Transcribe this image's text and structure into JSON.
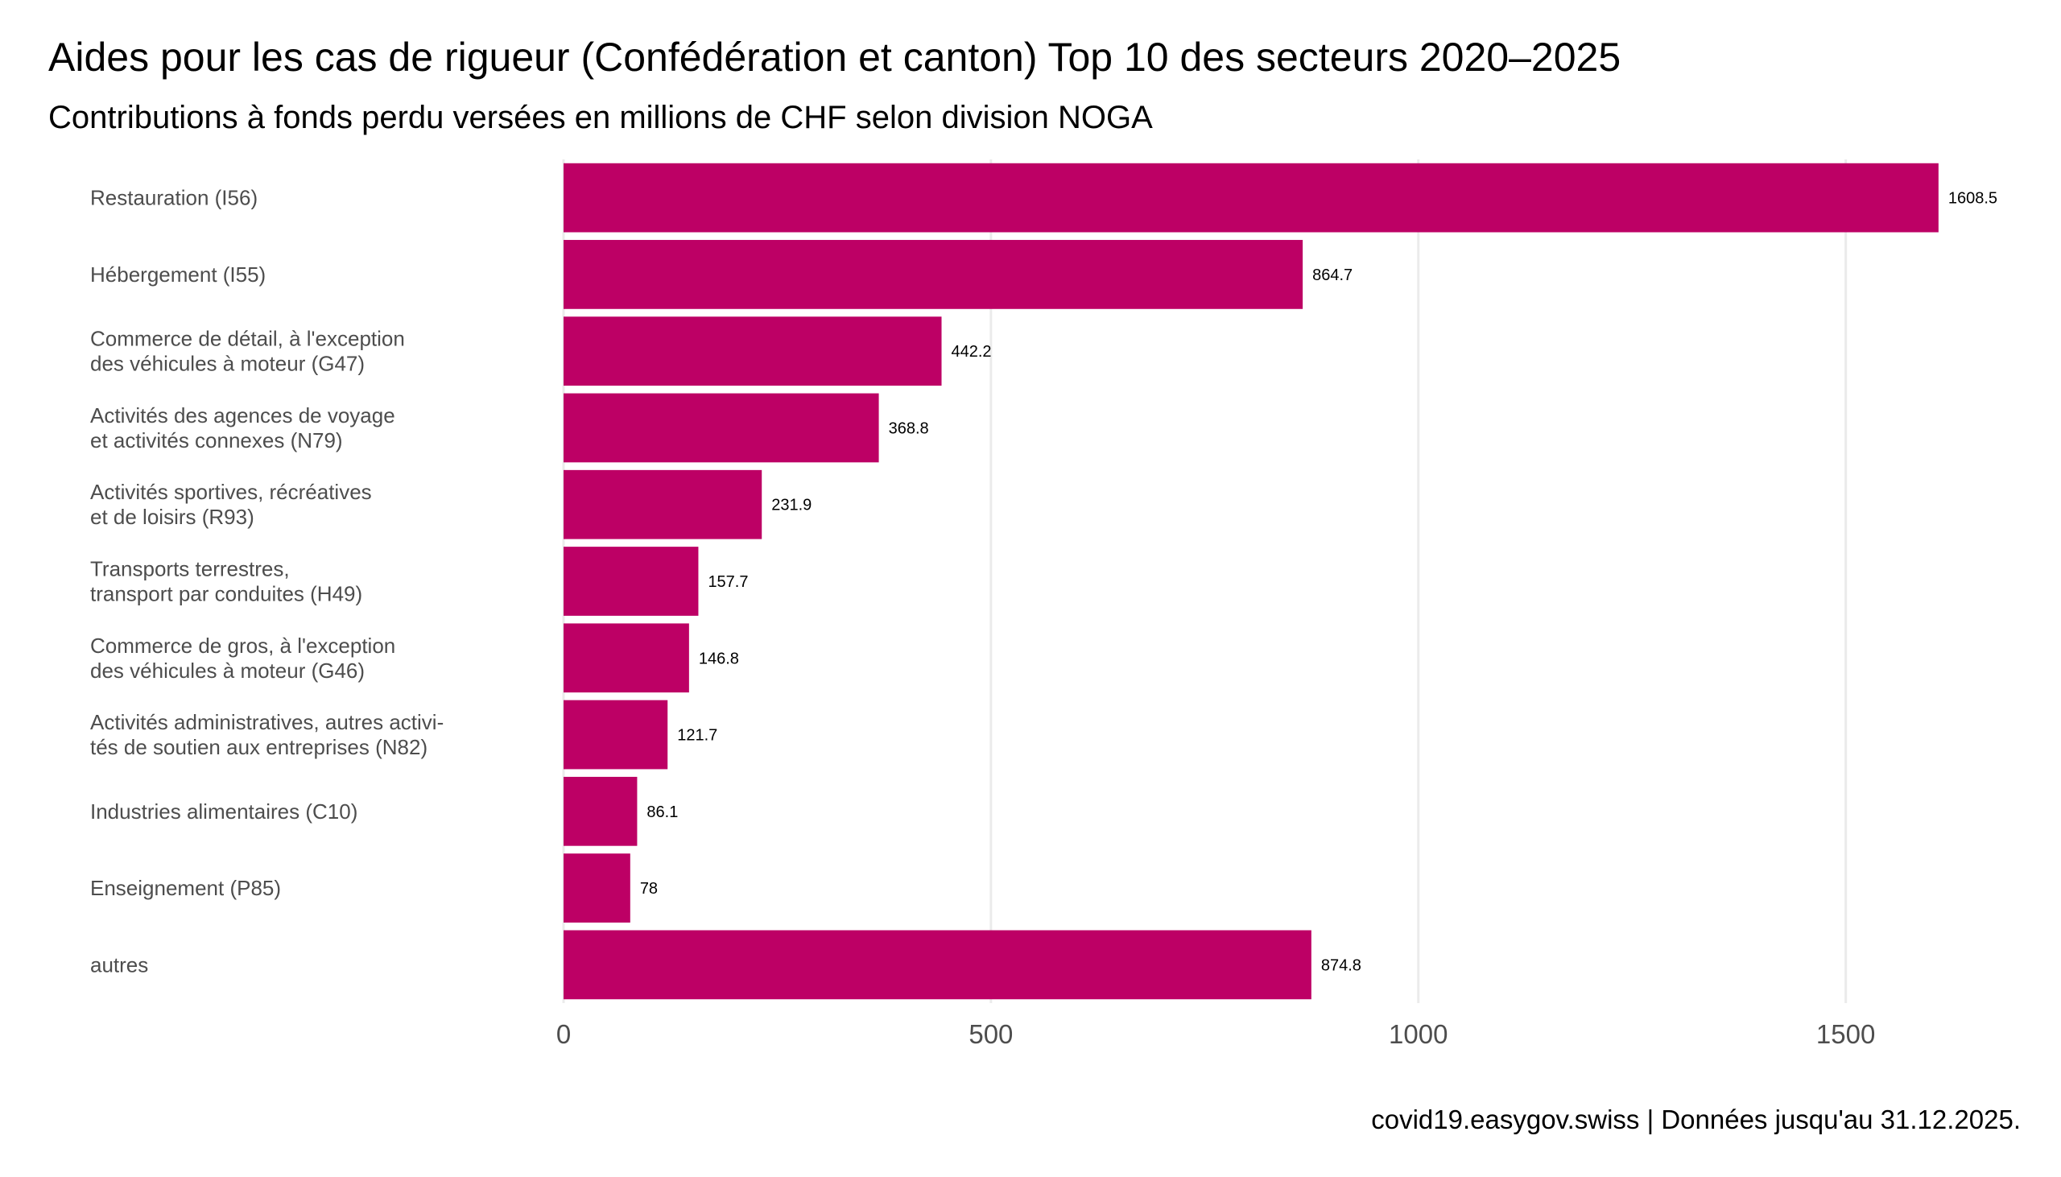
{
  "chart_data": {
    "type": "bar",
    "orientation": "horizontal",
    "title": "Aides pour les cas de rigueur (Confédération et canton) Top 10 des secteurs 2020–2025",
    "subtitle": "Contributions à fonds perdu versées en millions de CHF selon division NOGA",
    "caption": "covid19.easygov.swiss | Données jusqu'au 31.12.2025.",
    "xlabel": "",
    "ylabel": "",
    "xlim": [
      0,
      1700
    ],
    "xticks": [
      0,
      500,
      1000,
      1500
    ],
    "grid": true,
    "bar_color": "#bd0065",
    "categories": [
      [
        "Restauration (I56)"
      ],
      [
        "Hébergement (I55)"
      ],
      [
        "Commerce de détail, à l'exception",
        "des véhicules à moteur (G47)"
      ],
      [
        "Activités des agences de voyage",
        "et activités connexes (N79)"
      ],
      [
        "Activités sportives, récréatives",
        "et de loisirs (R93)"
      ],
      [
        "Transports terrestres,",
        "transport par conduites (H49)"
      ],
      [
        "Commerce de gros, à l'exception",
        "des véhicules à moteur (G46)"
      ],
      [
        "Activités administratives, autres activi-",
        "tés de soutien aux entreprises (N82)"
      ],
      [
        "Industries alimentaires (C10)"
      ],
      [
        "Enseignement (P85)"
      ],
      [
        "autres"
      ]
    ],
    "values": [
      1608.5,
      864.7,
      442.2,
      368.8,
      231.9,
      157.7,
      146.8,
      121.7,
      86.1,
      78,
      874.8
    ],
    "value_labels": [
      "1608.5",
      "864.7",
      "442.2",
      "368.8",
      "231.9",
      "157.7",
      "146.8",
      "121.7",
      "86.1",
      "78",
      "874.8"
    ]
  }
}
